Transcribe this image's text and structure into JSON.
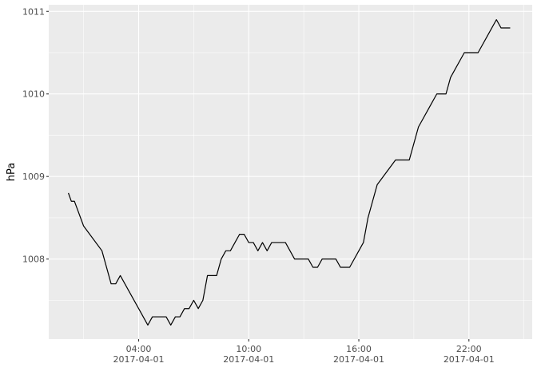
{
  "chart_data": {
    "type": "line",
    "title": "",
    "xlabel": "",
    "ylabel": "hPa",
    "grid": true,
    "legend": "none",
    "x_unit": "hours since 2017-04-01 00:00",
    "xlim": [
      -0.9,
      25.45
    ],
    "ylim": [
      1007.03,
      1011.08
    ],
    "y_ticks": [
      {
        "value": 1008,
        "label": "1008"
      },
      {
        "value": 1009,
        "label": "1009"
      },
      {
        "value": 1010,
        "label": "1010"
      },
      {
        "value": 1011,
        "label": "1011"
      }
    ],
    "x_ticks": [
      {
        "value": 4,
        "label": "04:00",
        "sublabel": "2017-04-01"
      },
      {
        "value": 10,
        "label": "10:00",
        "sublabel": "2017-04-01"
      },
      {
        "value": 16,
        "label": "16:00",
        "sublabel": "2017-04-01"
      },
      {
        "value": 22,
        "label": "22:00",
        "sublabel": "2017-04-01"
      }
    ],
    "x_minor_ticks": [
      1,
      7,
      13,
      19,
      25
    ],
    "y_minor_ticks": [
      1007.5,
      1008.5,
      1009.5,
      1010.5
    ],
    "series": [
      {
        "color": "#000000",
        "points": [
          [
            0.17,
            1008.8
          ],
          [
            0.33,
            1008.7
          ],
          [
            0.5,
            1008.7
          ],
          [
            1.0,
            1008.4
          ],
          [
            2.0,
            1008.1
          ],
          [
            2.5,
            1007.7
          ],
          [
            2.75,
            1007.7
          ],
          [
            3.0,
            1007.8
          ],
          [
            3.5,
            1007.6
          ],
          [
            4.0,
            1007.4
          ],
          [
            4.5,
            1007.2
          ],
          [
            4.75,
            1007.3
          ],
          [
            5.0,
            1007.3
          ],
          [
            5.5,
            1007.3
          ],
          [
            5.75,
            1007.2
          ],
          [
            6.0,
            1007.3
          ],
          [
            6.25,
            1007.3
          ],
          [
            6.5,
            1007.4
          ],
          [
            6.75,
            1007.4
          ],
          [
            7.0,
            1007.5
          ],
          [
            7.25,
            1007.4
          ],
          [
            7.5,
            1007.5
          ],
          [
            7.75,
            1007.8
          ],
          [
            8.0,
            1007.8
          ],
          [
            8.25,
            1007.8
          ],
          [
            8.5,
            1008.0
          ],
          [
            8.75,
            1008.1
          ],
          [
            9.0,
            1008.1
          ],
          [
            9.25,
            1008.2
          ],
          [
            9.5,
            1008.3
          ],
          [
            9.75,
            1008.3
          ],
          [
            10.0,
            1008.2
          ],
          [
            10.25,
            1008.2
          ],
          [
            10.5,
            1008.1
          ],
          [
            10.75,
            1008.2
          ],
          [
            11.0,
            1008.1
          ],
          [
            11.25,
            1008.2
          ],
          [
            11.5,
            1008.2
          ],
          [
            12.0,
            1008.2
          ],
          [
            12.5,
            1008.0
          ],
          [
            13.0,
            1008.0
          ],
          [
            13.25,
            1008.0
          ],
          [
            13.5,
            1007.9
          ],
          [
            13.75,
            1007.9
          ],
          [
            14.0,
            1008.0
          ],
          [
            14.5,
            1008.0
          ],
          [
            14.75,
            1008.0
          ],
          [
            15.0,
            1007.9
          ],
          [
            15.5,
            1007.9
          ],
          [
            16.0,
            1008.1
          ],
          [
            16.25,
            1008.2
          ],
          [
            16.5,
            1008.5
          ],
          [
            17.0,
            1008.9
          ],
          [
            17.5,
            1009.05
          ],
          [
            18.0,
            1009.2
          ],
          [
            18.5,
            1009.2
          ],
          [
            18.75,
            1009.2
          ],
          [
            19.0,
            1009.4
          ],
          [
            19.25,
            1009.6
          ],
          [
            19.75,
            1009.8
          ],
          [
            20.0,
            1009.9
          ],
          [
            20.25,
            1010.0
          ],
          [
            20.5,
            1010.0
          ],
          [
            20.75,
            1010.0
          ],
          [
            21.0,
            1010.2
          ],
          [
            21.25,
            1010.3
          ],
          [
            21.75,
            1010.5
          ],
          [
            22.0,
            1010.5
          ],
          [
            22.5,
            1010.5
          ],
          [
            23.0,
            1010.7
          ],
          [
            23.5,
            1010.9
          ],
          [
            23.75,
            1010.8
          ],
          [
            24.0,
            1010.8
          ],
          [
            24.25,
            1010.8
          ]
        ]
      }
    ]
  }
}
